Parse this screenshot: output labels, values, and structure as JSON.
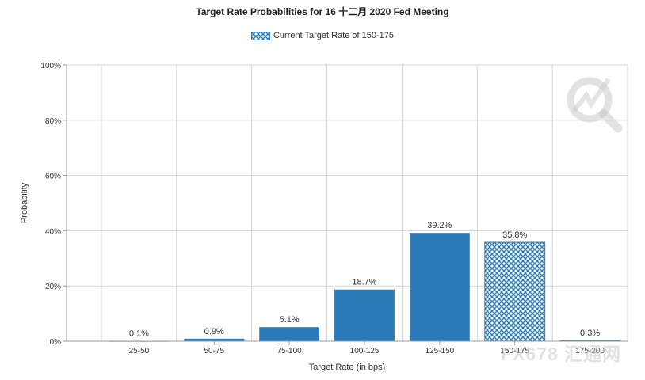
{
  "chart_data": {
    "type": "bar",
    "title": "Target Rate Probabilities for 16 十二月 2020 Fed Meeting",
    "xlabel": "Target Rate (in bps)",
    "ylabel": "Probability",
    "categories": [
      "25-50",
      "50-75",
      "75-100",
      "100-125",
      "125-150",
      "150-175",
      "175-200"
    ],
    "values": [
      0.1,
      0.9,
      5.1,
      18.7,
      39.2,
      35.8,
      0.3
    ],
    "data_labels": [
      "0.1%",
      "0.9%",
      "5.1%",
      "18.7%",
      "39.2%",
      "35.8%",
      "0.3%"
    ],
    "highlighted_category": "150-175",
    "y_ticks": [
      0,
      20,
      40,
      60,
      80,
      100
    ],
    "y_tick_labels": [
      "0%",
      "20%",
      "40%",
      "60%",
      "80%",
      "100%"
    ],
    "ylim": [
      0,
      100
    ],
    "grid": true,
    "legend": {
      "label": "Current Target Rate of 150-175",
      "placement": "top-center"
    },
    "colors": {
      "bar": "#2b7bb9",
      "grid": "#d6d6d6",
      "axis": "#999999",
      "text": "#333333"
    }
  },
  "watermark": {
    "text": "FX678 汇通网",
    "icon": "magnifier-logo-icon"
  }
}
